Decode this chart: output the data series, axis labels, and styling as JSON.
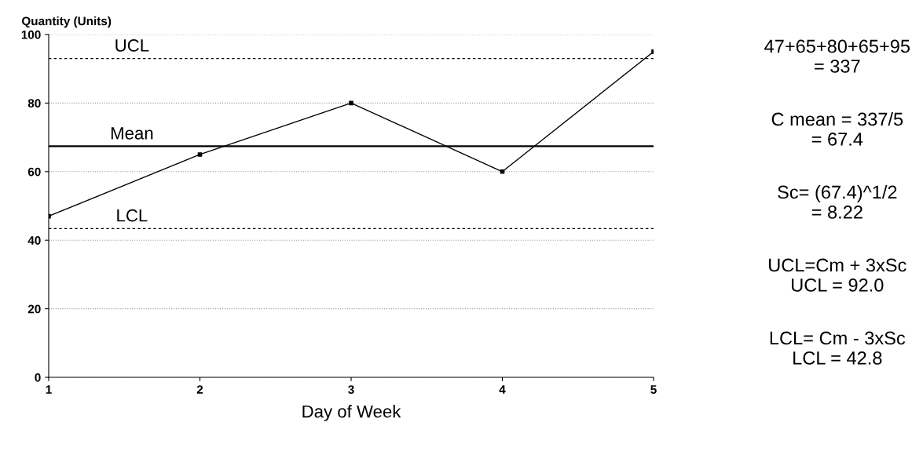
{
  "chart_data": {
    "type": "line",
    "xlabel": "Day of Week",
    "ylabel": "Quantity (Units)",
    "x": [
      1,
      2,
      3,
      4,
      5
    ],
    "series": [
      {
        "color": "#000000",
        "values": [
          47,
          65,
          80,
          60,
          95
        ]
      }
    ],
    "xlim": [
      1,
      5
    ],
    "xticks": [
      1,
      2,
      3,
      4,
      5
    ],
    "ylim": [
      0,
      100
    ],
    "yticks": [
      0,
      20,
      40,
      60,
      80,
      100
    ],
    "grid": "y",
    "marker": "square",
    "line_style": "solid",
    "legend": false,
    "ref_lines": [
      {
        "axis": "y",
        "value": 93,
        "label": "UCL",
        "color": "#000000",
        "line_style": "dashed"
      },
      {
        "axis": "y",
        "value": 67.4,
        "label": "Mean",
        "color": "#000000",
        "line_style": "solid"
      },
      {
        "axis": "y",
        "value": 43.4,
        "label": "LCL",
        "color": "#000000",
        "line_style": "dashed"
      }
    ],
    "annotations": [
      "47+65+80+65+95\n= 337",
      "C mean = 337/5\n= 67.4",
      "Sc= (67.4)^1/2\n= 8.22",
      "UCL=Cm + 3xSc\nUCL = 92.0",
      "LCL= Cm - 3xSc\nLCL = 42.8"
    ]
  }
}
